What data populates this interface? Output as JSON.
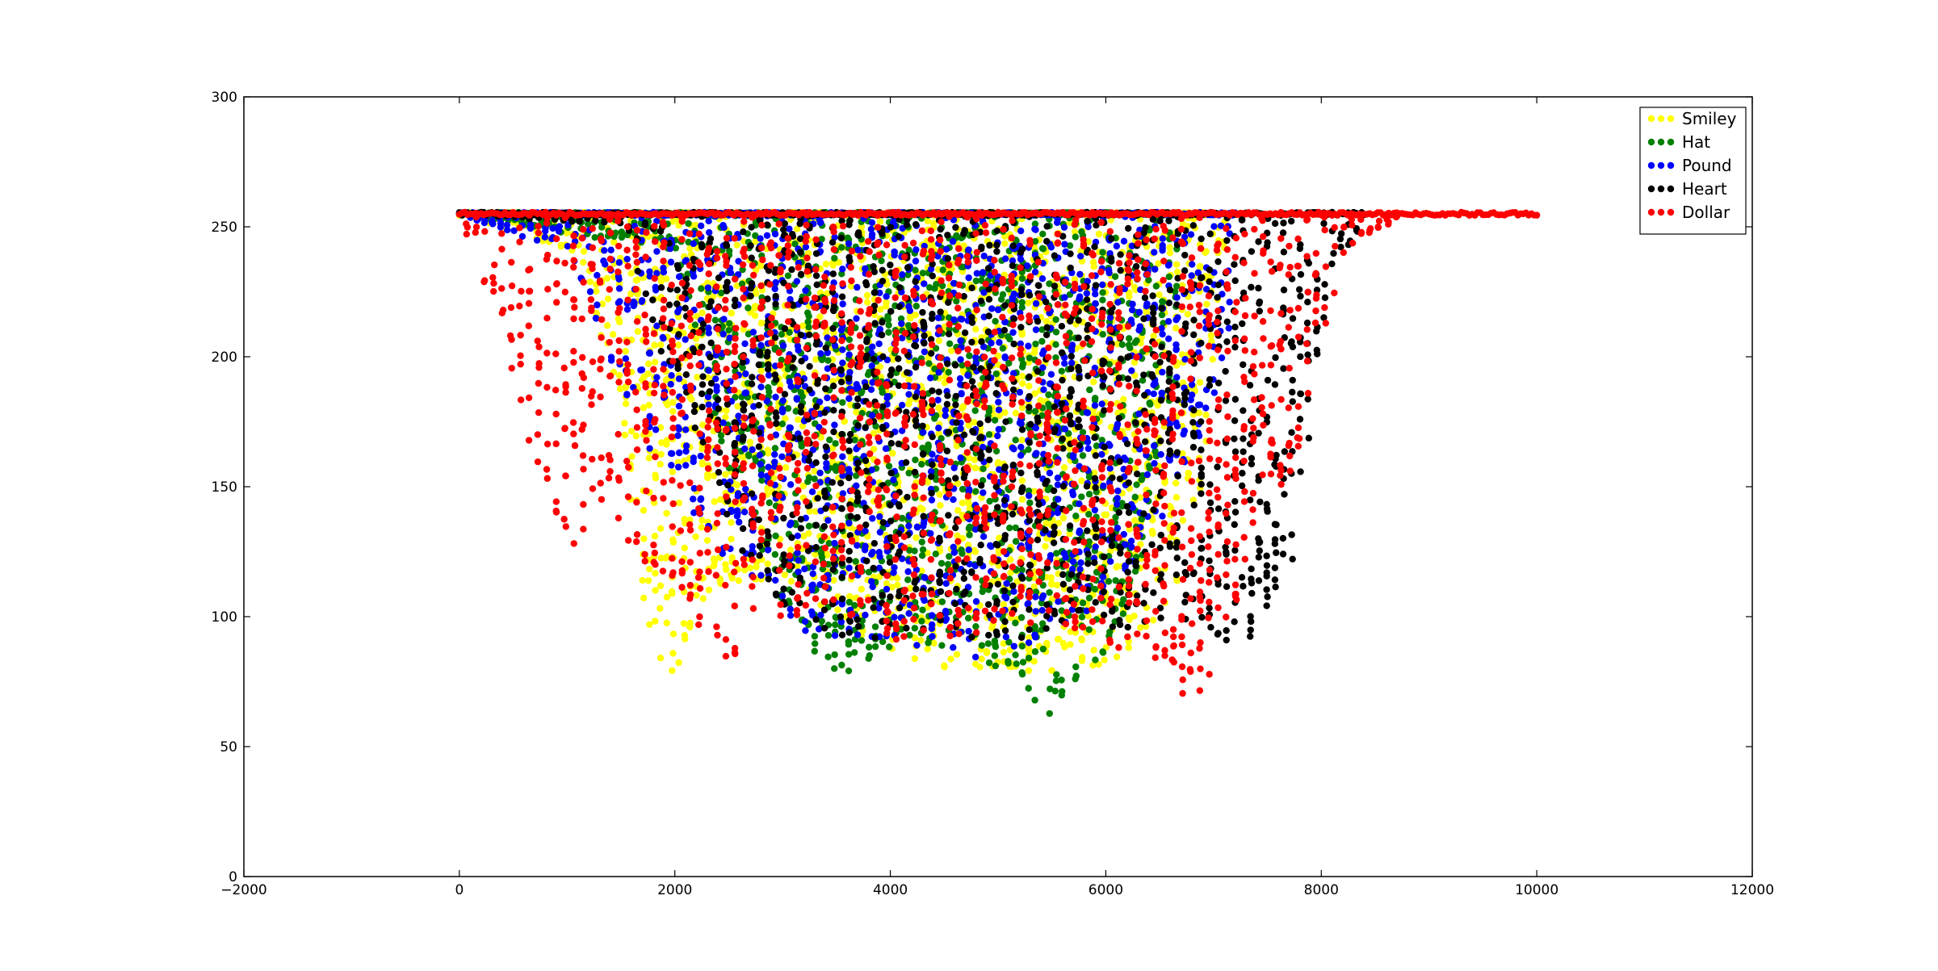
{
  "chart_data": {
    "type": "scatter",
    "title": "",
    "xlabel": "",
    "ylabel": "",
    "xlim": [
      -2000,
      12000
    ],
    "ylim": [
      0,
      300
    ],
    "xticks": [
      -2000,
      0,
      2000,
      4000,
      6000,
      8000,
      10000,
      12000
    ],
    "yticks": [
      0,
      50,
      100,
      150,
      200,
      250,
      300
    ],
    "grid": false,
    "legend_position": "top-right",
    "series": [
      {
        "name": "Smiley",
        "color": "#ffff00",
        "x_range": [
          0,
          7100
        ],
        "baseline": 255,
        "upper": 255,
        "lower_envelope": [
          [
            0,
            255
          ],
          [
            1100,
            240
          ],
          [
            1500,
            180
          ],
          [
            1700,
            100
          ],
          [
            1950,
            72
          ],
          [
            2300,
            110
          ],
          [
            3000,
            115
          ],
          [
            4000,
            85
          ],
          [
            4500,
            80
          ],
          [
            5000,
            80
          ],
          [
            5500,
            78
          ],
          [
            6000,
            82
          ],
          [
            6500,
            90
          ],
          [
            6900,
            150
          ],
          [
            7100,
            240
          ]
        ]
      },
      {
        "name": "Hat",
        "color": "#008000",
        "x_range": [
          0,
          6700
        ],
        "baseline": 255,
        "upper": 255,
        "lower_envelope": [
          [
            0,
            255
          ],
          [
            2000,
            240
          ],
          [
            2500,
            150
          ],
          [
            3000,
            100
          ],
          [
            3300,
            80
          ],
          [
            3700,
            78
          ],
          [
            4300,
            90
          ],
          [
            4800,
            80
          ],
          [
            5200,
            78
          ],
          [
            5450,
            60
          ],
          [
            5700,
            75
          ],
          [
            6000,
            85
          ],
          [
            6300,
            110
          ],
          [
            6700,
            200
          ]
        ]
      },
      {
        "name": "Pound",
        "color": "#0000ff",
        "x_range": [
          0,
          7200
        ],
        "baseline": 255,
        "upper": 255,
        "lower_envelope": [
          [
            0,
            255
          ],
          [
            1000,
            240
          ],
          [
            1400,
            200
          ],
          [
            1800,
            160
          ],
          [
            2300,
            130
          ],
          [
            2800,
            110
          ],
          [
            3200,
            88
          ],
          [
            3700,
            92
          ],
          [
            4300,
            88
          ],
          [
            4800,
            84
          ],
          [
            5300,
            90
          ],
          [
            5800,
            100
          ],
          [
            6300,
            120
          ],
          [
            6800,
            160
          ],
          [
            7200,
            210
          ]
        ]
      },
      {
        "name": "Heart",
        "color": "#000000",
        "x_range": [
          0,
          8400
        ],
        "baseline": 255,
        "upper": 255,
        "lower_envelope": [
          [
            0,
            255
          ],
          [
            1500,
            250
          ],
          [
            2200,
            160
          ],
          [
            2700,
            115
          ],
          [
            3200,
            95
          ],
          [
            3800,
            90
          ],
          [
            4400,
            95
          ],
          [
            5000,
            90
          ],
          [
            5600,
            95
          ],
          [
            6200,
            95
          ],
          [
            6800,
            95
          ],
          [
            7300,
            88
          ],
          [
            7700,
            115
          ],
          [
            7900,
            165
          ],
          [
            8100,
            235
          ],
          [
            8400,
            250
          ]
        ]
      },
      {
        "name": "Dollar",
        "color": "#ff0000",
        "x_range": [
          0,
          10000
        ],
        "baseline": 255,
        "upper": 255,
        "lower_envelope": [
          [
            0,
            255
          ],
          [
            300,
            220
          ],
          [
            600,
            170
          ],
          [
            900,
            140
          ],
          [
            1100,
            118
          ],
          [
            1400,
            140
          ],
          [
            1700,
            120
          ],
          [
            2000,
            110
          ],
          [
            2300,
            90
          ],
          [
            2550,
            72
          ],
          [
            2900,
            100
          ],
          [
            3500,
            100
          ],
          [
            4000,
            90
          ],
          [
            4600,
            90
          ],
          [
            5200,
            95
          ],
          [
            5800,
            95
          ],
          [
            6300,
            82
          ],
          [
            6600,
            70
          ],
          [
            6900,
            70
          ],
          [
            7100,
            95
          ],
          [
            7400,
            125
          ],
          [
            7800,
            160
          ],
          [
            8000,
            200
          ],
          [
            8200,
            240
          ],
          [
            8800,
            255
          ],
          [
            10000,
            255
          ]
        ]
      }
    ]
  }
}
